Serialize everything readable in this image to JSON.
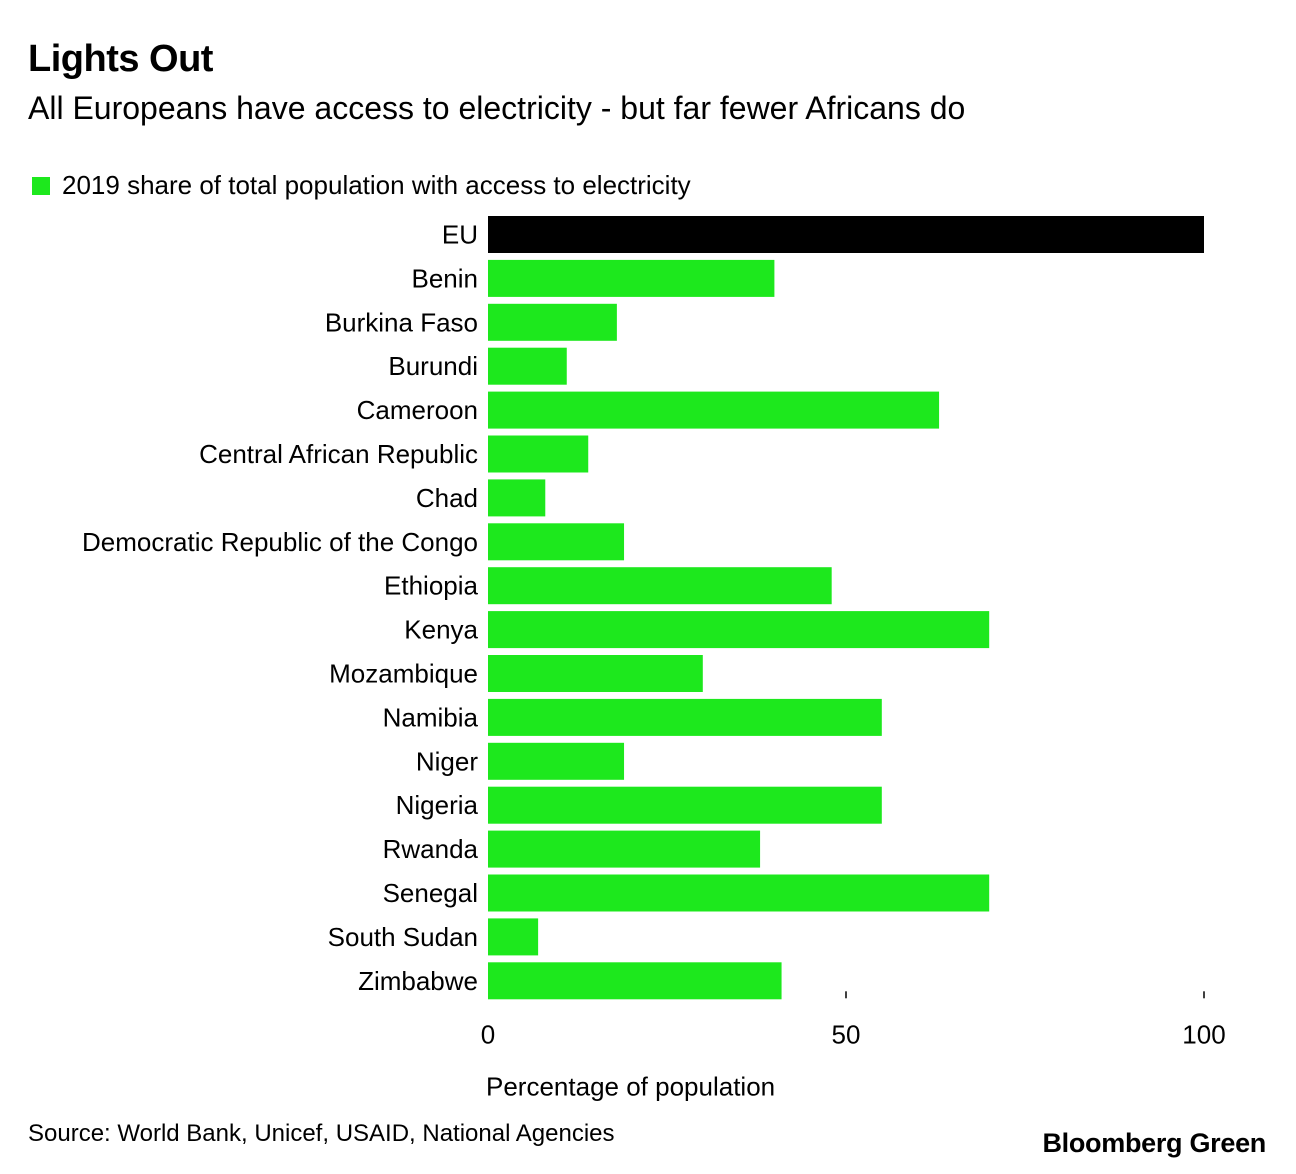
{
  "chart_data": {
    "type": "bar",
    "orientation": "horizontal",
    "title": "Lights Out",
    "subtitle": "All Europeans have access to electricity - but far fewer Africans do",
    "legend": {
      "label": "2019 share of total population with access to electricity",
      "color": "#1de81d",
      "placement": "top-left"
    },
    "categories": [
      "EU",
      "Benin",
      "Burkina Faso",
      "Burundi",
      "Cameroon",
      "Central African Republic",
      "Chad",
      "Democratic Republic of the Congo",
      "Ethiopia",
      "Kenya",
      "Mozambique",
      "Namibia",
      "Niger",
      "Nigeria",
      "Rwanda",
      "Senegal",
      "South Sudan",
      "Zimbabwe"
    ],
    "values": [
      100,
      40,
      18,
      11,
      63,
      14,
      8,
      19,
      48,
      70,
      30,
      55,
      19,
      55,
      38,
      70,
      7,
      41
    ],
    "highlight": {
      "category": "EU",
      "color": "#000000"
    },
    "bar_color": "#1de81d",
    "xlabel": "Percentage of population",
    "ylabel": "",
    "xlim": [
      0,
      100
    ],
    "xticks": [
      0,
      50,
      100
    ],
    "grid": false
  },
  "source": "Source: World Bank, Unicef, USAID, National Agencies",
  "brand": "Bloomberg Green"
}
